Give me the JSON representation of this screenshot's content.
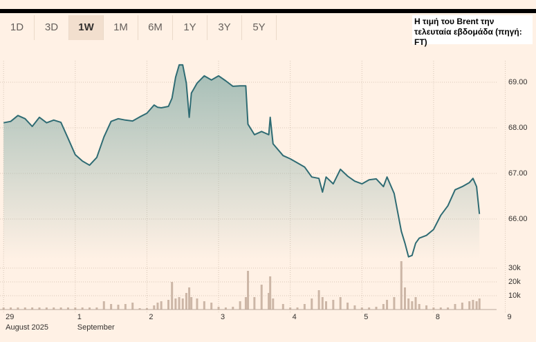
{
  "chart_data": {
    "type": "line",
    "title": "Η τιμή του Brent την τελευταία εβδομάδα (πηγή: FT)",
    "tabs": [
      "1D",
      "3D",
      "1W",
      "1M",
      "6M",
      "1Y",
      "3Y",
      "5Y"
    ],
    "selected_tab": 2,
    "x": [
      0,
      0.1,
      0.2,
      0.3,
      0.4,
      0.5,
      0.6,
      0.7,
      0.8,
      0.9,
      1.0,
      1.1,
      1.2,
      1.3,
      1.4,
      1.5,
      1.6,
      1.7,
      1.8,
      1.9,
      2.0,
      2.1,
      2.15,
      2.2,
      2.3,
      2.35,
      2.4,
      2.45,
      2.5,
      2.55,
      2.59,
      2.62,
      2.7,
      2.8,
      2.9,
      3.0,
      3.1,
      3.2,
      3.3,
      3.38,
      3.41,
      3.5,
      3.6,
      3.7,
      3.72,
      3.76,
      3.9,
      4.0,
      4.1,
      4.2,
      4.3,
      4.4,
      4.45,
      4.5,
      4.6,
      4.7,
      4.8,
      4.9,
      5.0,
      5.1,
      5.2,
      5.3,
      5.35,
      5.45,
      5.55,
      5.6,
      5.65,
      5.7,
      5.75,
      5.8,
      5.9,
      6.0,
      6.1,
      6.2,
      6.3,
      6.4,
      6.5,
      6.55,
      6.6,
      6.64
    ],
    "series": [
      {
        "color": "#2e6b73",
        "values": [
          68.11,
          68.14,
          68.27,
          68.2,
          68.03,
          68.23,
          68.11,
          68.17,
          68.12,
          67.77,
          67.41,
          67.27,
          67.18,
          67.35,
          67.8,
          68.14,
          68.2,
          68.17,
          68.15,
          68.24,
          68.32,
          68.5,
          68.45,
          68.44,
          68.47,
          68.65,
          69.11,
          69.38,
          69.38,
          68.98,
          68.23,
          68.76,
          68.98,
          69.14,
          69.05,
          69.14,
          69.03,
          68.91,
          68.92,
          68.92,
          68.08,
          67.85,
          67.92,
          67.85,
          68.23,
          67.65,
          67.39,
          67.32,
          67.23,
          67.14,
          66.92,
          66.89,
          66.59,
          66.92,
          66.77,
          67.09,
          66.94,
          66.83,
          66.77,
          66.86,
          66.88,
          66.71,
          66.92,
          66.56,
          65.73,
          65.47,
          65.17,
          65.2,
          65.47,
          65.58,
          65.64,
          65.77,
          66.08,
          66.29,
          66.64,
          66.71,
          66.8,
          66.89,
          66.71,
          66.11
        ]
      },
      {
        "color": "#ccb6a6",
        "axis": "y2",
        "type": "bar",
        "values": [
          1500,
          1500,
          1500,
          1500,
          1500,
          1500,
          1500,
          1500,
          1500,
          1500,
          1500,
          1500,
          1500,
          1500,
          6000,
          4000,
          3500,
          4000,
          5000,
          1000,
          1000,
          3000,
          5000,
          6000,
          7000,
          20000,
          8000,
          9000,
          8000,
          12000,
          16000,
          9000,
          8000,
          6000,
          5000,
          2000,
          1500,
          2000,
          6000,
          9000,
          28000,
          9000,
          18000,
          12000,
          24000,
          8000,
          4000,
          1500,
          1500,
          4000,
          8000,
          14000,
          9000,
          6000,
          7000,
          9000,
          5000,
          3000,
          1500,
          1500,
          2000,
          4000,
          7000,
          9000,
          35000,
          16000,
          8000,
          6000,
          9000,
          4000,
          3000,
          1500,
          1500,
          1500,
          4000,
          5000,
          6000,
          7000,
          6000,
          8000
        ]
      }
    ],
    "xlim": [
      -0.05,
      6.85
    ],
    "xticks": [
      {
        "value": 0,
        "label": "29"
      },
      1,
      2,
      3,
      4,
      5,
      {
        "value": 6,
        "label": "8"
      },
      {
        "value": 7,
        "label": "9"
      }
    ],
    "x_sublabels": [
      {
        "value": 0,
        "label": "August 2025"
      },
      {
        "value": 1,
        "label": "September"
      }
    ],
    "ylim": [
      65.12,
      69.47
    ],
    "yticks": [
      {
        "value": 66,
        "label": "66.00"
      },
      {
        "value": 67,
        "label": "67.00"
      },
      {
        "value": 68,
        "label": "68.00"
      },
      {
        "value": 69,
        "label": "69.00"
      }
    ],
    "y2lim": [
      0,
      36000
    ],
    "y2ticks": [
      {
        "value": 10000,
        "label": "10k"
      },
      {
        "value": 20000,
        "label": "20k"
      },
      {
        "value": 30000,
        "label": "30k"
      }
    ],
    "grid": true
  }
}
